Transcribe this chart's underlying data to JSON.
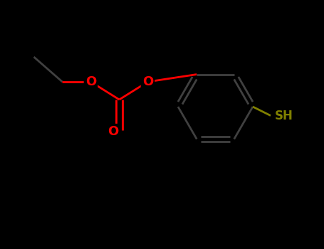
{
  "background_color": "#000000",
  "bond_color": "#1a1a1a",
  "oxygen_color": "#ff0000",
  "sulfur_color": "#808000",
  "sh_label": "SH",
  "o_label": "O",
  "figsize": [
    4.55,
    3.5
  ],
  "dpi": 100,
  "xlim": [
    0,
    9
  ],
  "ylim": [
    0,
    7
  ],
  "bond_lw": 2.0,
  "label_fontsize": 13,
  "sh_fontsize": 12,
  "bond_gray": "#404040"
}
